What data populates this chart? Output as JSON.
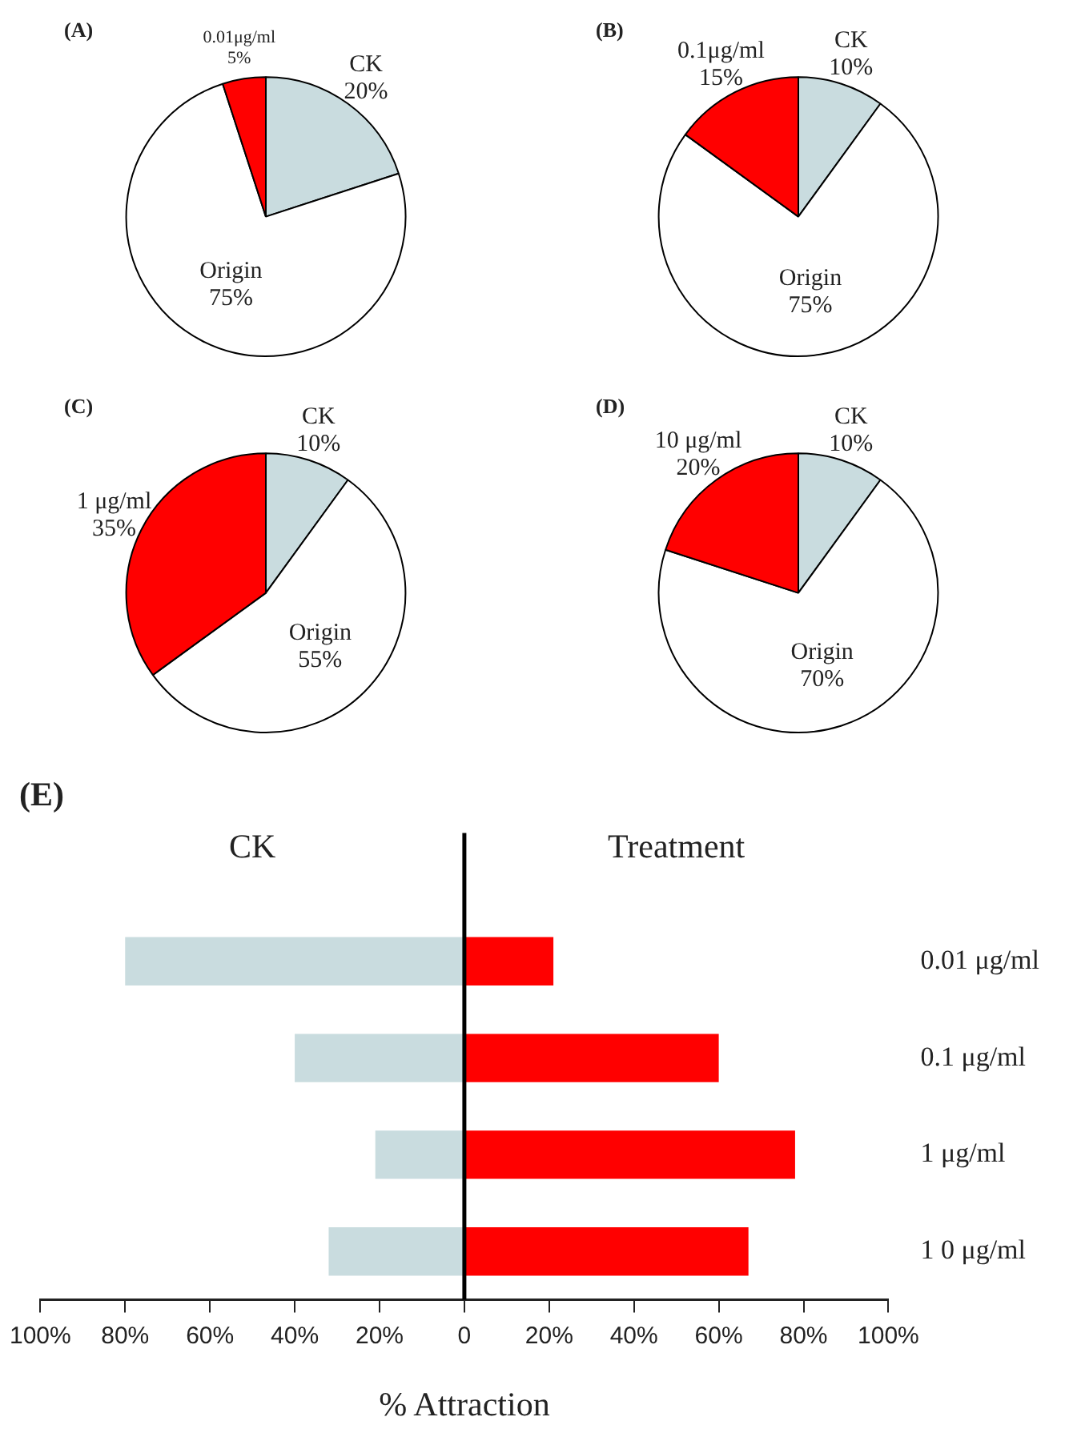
{
  "chart_data": [
    {
      "type": "pie",
      "title": "(A)",
      "categories": [
        "CK",
        "Origin",
        "0.01μg/ml"
      ],
      "values": [
        20,
        75,
        5
      ],
      "value_labels": [
        "20%",
        "75%",
        "5%"
      ],
      "colors": [
        "#c9dcdf",
        "#ffffff",
        "#ff0000"
      ],
      "legend": false
    },
    {
      "type": "pie",
      "title": "(B)",
      "categories": [
        "CK",
        "Origin",
        "0.1μg/ml"
      ],
      "values": [
        10,
        75,
        15
      ],
      "value_labels": [
        "10%",
        "75%",
        "15%"
      ],
      "colors": [
        "#c9dcdf",
        "#ffffff",
        "#ff0000"
      ],
      "legend": false
    },
    {
      "type": "pie",
      "title": "(C)",
      "categories": [
        "CK",
        "Origin",
        "1 μg/ml"
      ],
      "values": [
        10,
        55,
        35
      ],
      "value_labels": [
        "10%",
        "55%",
        "35%"
      ],
      "colors": [
        "#c9dcdf",
        "#ffffff",
        "#ff0000"
      ],
      "legend": false
    },
    {
      "type": "pie",
      "title": "(D)",
      "categories": [
        "CK",
        "Origin",
        "10 μg/ml"
      ],
      "values": [
        10,
        70,
        20
      ],
      "value_labels": [
        "10%",
        "70%",
        "20%"
      ],
      "colors": [
        "#c9dcdf",
        "#ffffff",
        "#ff0000"
      ],
      "legend": false
    },
    {
      "type": "bar",
      "title": "(E)",
      "orientation": "horizontal",
      "stacked": true,
      "xlabel": "% Attraction",
      "categories": [
        "0.01 μg/ml",
        "0.1 μg/ml",
        "1 μg/ml",
        "1 0 μg/ml"
      ],
      "series": [
        {
          "name": "CK",
          "color": "#c9dcdf",
          "values": [
            -80,
            -40,
            -21,
            -32
          ]
        },
        {
          "name": "Treatment",
          "color": "#ff0000",
          "values": [
            21,
            60,
            78,
            67
          ]
        }
      ],
      "xlim": [
        -100,
        100
      ],
      "xticks": [
        {
          "value": -100,
          "label": "100%"
        },
        {
          "value": -80,
          "label": "80%"
        },
        {
          "value": -60,
          "label": "60%"
        },
        {
          "value": -40,
          "label": "40%"
        },
        {
          "value": -20,
          "label": "20%"
        },
        0,
        {
          "value": 20,
          "label": "20%"
        },
        {
          "value": 40,
          "label": "40%"
        },
        {
          "value": 60,
          "label": "60%"
        },
        {
          "value": 80,
          "label": "80%"
        },
        {
          "value": 100,
          "label": "100%"
        }
      ],
      "ref_lines": [
        {
          "axis": "x",
          "value": 0,
          "color": "#000000"
        }
      ],
      "grid": false,
      "legend": false
    }
  ]
}
